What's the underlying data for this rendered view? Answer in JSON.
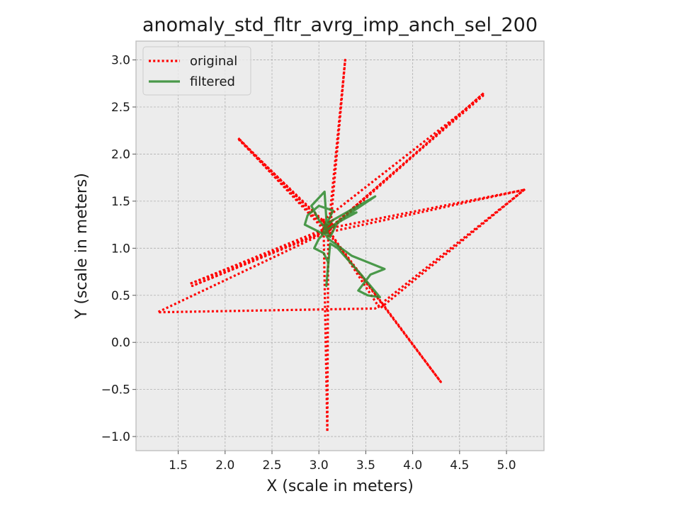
{
  "chart_data": {
    "type": "line",
    "title": "anomaly_std_fltr_avrg_imp_anch_sel_200",
    "xlabel": "X (scale in meters)",
    "ylabel": "Y (scale in meters)",
    "xlim": [
      1.05,
      5.4
    ],
    "ylim": [
      -1.15,
      3.2
    ],
    "xticks": [
      1.5,
      2.0,
      2.5,
      3.0,
      3.5,
      4.0,
      4.5,
      5.0
    ],
    "yticks": [
      -1.0,
      -0.5,
      0.0,
      0.5,
      1.0,
      1.5,
      2.0,
      2.5,
      3.0
    ],
    "xtick_labels": [
      "1.5",
      "2.0",
      "2.5",
      "3.0",
      "3.5",
      "4.0",
      "4.5",
      "5.0"
    ],
    "ytick_labels": [
      "−1.0",
      "−0.5",
      "0.0",
      "0.5",
      "1.0",
      "1.5",
      "2.0",
      "2.5",
      "3.0"
    ],
    "grid": true,
    "legend_position": "top-left",
    "background_color": "#ececec",
    "series": [
      {
        "name": "original",
        "color": "#ff0000",
        "style": "dotted",
        "x": [
          3.08,
          3.12,
          3.05,
          3.15,
          3.1,
          3.28,
          3.12,
          3.05,
          4.76,
          3.15,
          3.08,
          1.62,
          3.05,
          3.15,
          3.1,
          2.14,
          3.12,
          3.05,
          3.15,
          5.19,
          3.15,
          3.1,
          1.28,
          3.6,
          5.2,
          3.65,
          3.1,
          3.2,
          4.3,
          3.15,
          3.05,
          3.1,
          3.09,
          3.05,
          3.12,
          3.1,
          3.05,
          4.75,
          3.1,
          1.65,
          3.08,
          3.12,
          2.15,
          3.08,
          3.15,
          3.05,
          3.1
        ],
        "y": [
          1.2,
          1.15,
          1.25,
          1.3,
          1.18,
          3.0,
          1.2,
          1.15,
          2.65,
          1.22,
          1.18,
          0.62,
          1.2,
          1.25,
          1.15,
          2.17,
          1.2,
          1.28,
          1.18,
          1.62,
          1.22,
          1.18,
          0.32,
          0.36,
          1.63,
          0.36,
          1.2,
          1.05,
          -0.42,
          1.1,
          1.2,
          1.15,
          -0.95,
          1.25,
          1.2,
          1.18,
          1.3,
          2.62,
          1.2,
          0.6,
          1.18,
          1.22,
          2.15,
          1.2,
          1.3,
          1.25,
          1.2
        ]
      },
      {
        "name": "filtered",
        "color": "#2e8b2e",
        "style": "solid",
        "x": [
          3.05,
          3.1,
          3.15,
          3.6,
          3.3,
          3.1,
          3.0,
          2.95,
          3.05,
          3.1,
          3.08,
          3.12,
          3.2,
          3.45,
          3.65,
          3.52,
          3.42,
          3.55,
          3.7,
          3.35,
          3.1,
          3.05,
          3.08,
          3.15,
          3.0,
          2.88,
          2.85,
          2.95,
          3.05,
          3.08,
          3.06,
          2.92,
          3.0,
          3.08,
          3.1,
          3.12,
          3.2,
          3.3,
          3.4,
          3.25,
          3.12,
          3.05,
          3.08,
          3.1,
          3.06,
          3.1
        ],
        "y": [
          1.2,
          1.25,
          1.3,
          1.55,
          1.35,
          1.2,
          1.1,
          1.0,
          0.95,
          0.85,
          0.6,
          1.05,
          1.0,
          0.72,
          0.48,
          0.5,
          0.55,
          0.72,
          0.78,
          0.92,
          1.1,
          1.18,
          1.25,
          1.4,
          1.45,
          1.35,
          1.25,
          1.2,
          1.15,
          1.3,
          1.6,
          1.45,
          1.3,
          1.2,
          1.15,
          1.12,
          1.28,
          1.35,
          1.38,
          1.3,
          1.22,
          1.18,
          1.2,
          1.15,
          1.22,
          1.2
        ]
      }
    ]
  }
}
